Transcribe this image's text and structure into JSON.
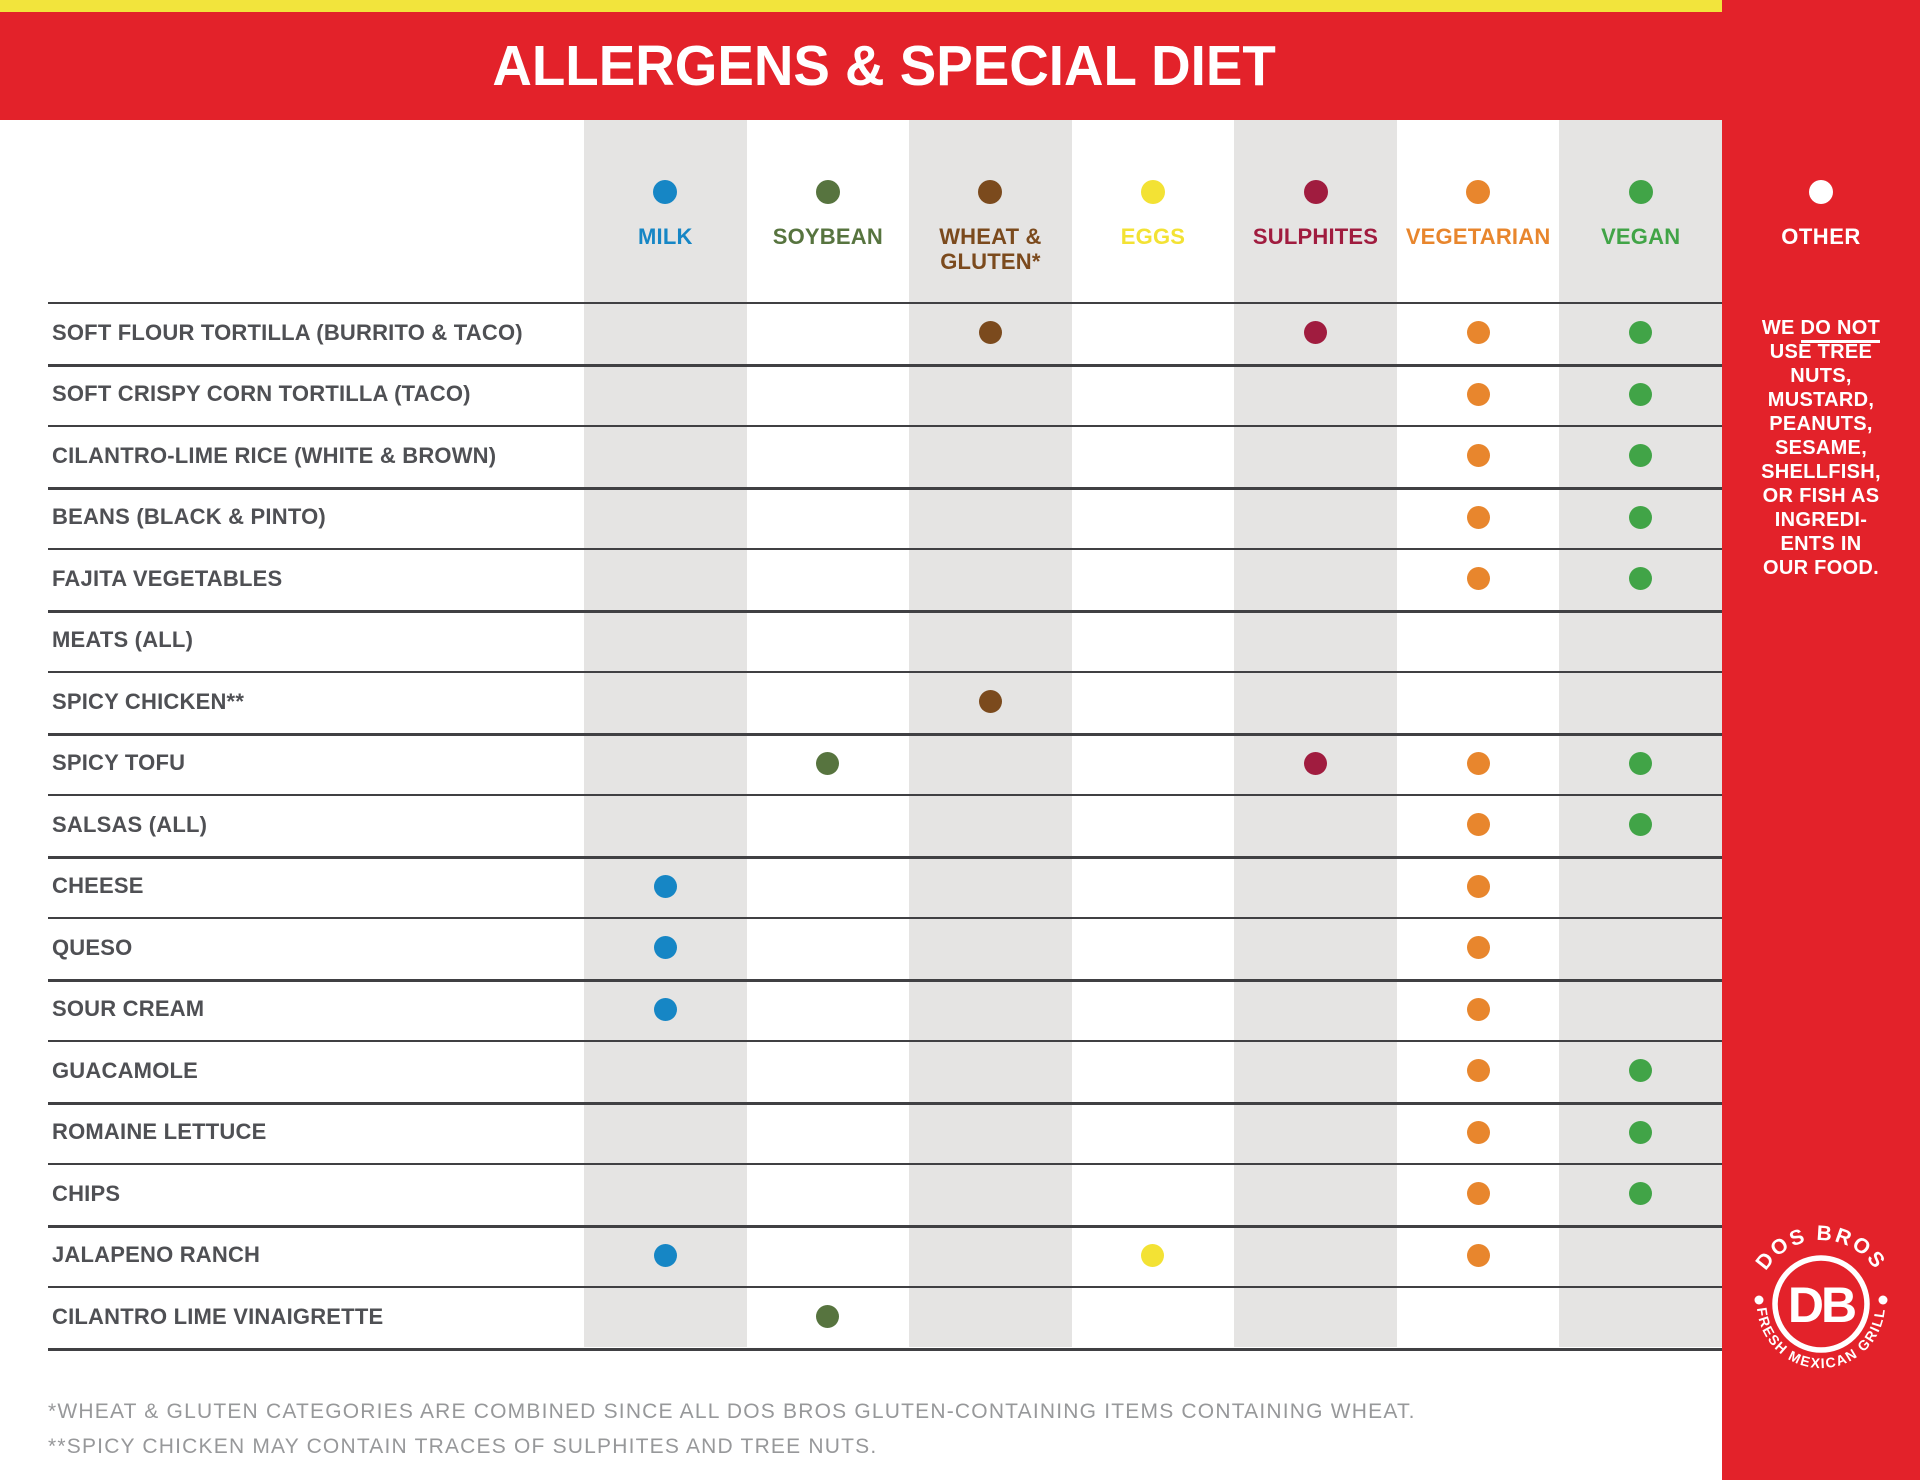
{
  "banner": {
    "title": "ALLERGENS & SPECIAL DIET"
  },
  "colors": {
    "brand_red": "#e3222a",
    "accent_yellow": "#f2e43c",
    "stripe_gray": "#e5e4e3",
    "grid_line": "#404043",
    "row_label": "#4f5054",
    "footnote": "#97989a"
  },
  "columns": [
    {
      "key": "milk",
      "label": "MILK",
      "color": "#1686c5",
      "shaded": true
    },
    {
      "key": "soybean",
      "label": "SOYBEAN",
      "color": "#57743f",
      "shaded": false
    },
    {
      "key": "wheat",
      "label": "WHEAT & GLUTEN*",
      "color": "#7b4a1d",
      "shaded": true
    },
    {
      "key": "eggs",
      "label": "EGGS",
      "color": "#f3e234",
      "shaded": false
    },
    {
      "key": "sulphites",
      "label": "SULPHITES",
      "color": "#a01c3f",
      "shaded": true
    },
    {
      "key": "vegetarian",
      "label": "VEGETARIAN",
      "color": "#e8862d",
      "shaded": false
    },
    {
      "key": "vegan",
      "label": "VEGAN",
      "color": "#41a447",
      "shaded": true
    }
  ],
  "rows": [
    {
      "label": "SOFT FLOUR TORTILLA (BURRITO & TACO)",
      "marks": [
        "wheat",
        "sulphites",
        "vegetarian",
        "vegan"
      ]
    },
    {
      "label": "SOFT CRISPY CORN TORTILLA (TACO)",
      "marks": [
        "vegetarian",
        "vegan"
      ]
    },
    {
      "label": "CILANTRO-LIME RICE (WHITE & BROWN)",
      "marks": [
        "vegetarian",
        "vegan"
      ]
    },
    {
      "label": "BEANS (BLACK & PINTO)",
      "marks": [
        "vegetarian",
        "vegan"
      ]
    },
    {
      "label": "FAJITA VEGETABLES",
      "marks": [
        "vegetarian",
        "vegan"
      ]
    },
    {
      "label": "MEATS (ALL)",
      "marks": []
    },
    {
      "label": "SPICY CHICKEN**",
      "marks": [
        "wheat"
      ]
    },
    {
      "label": "SPICY TOFU",
      "marks": [
        "soybean",
        "sulphites",
        "vegetarian",
        "vegan"
      ]
    },
    {
      "label": "SALSAS (ALL)",
      "marks": [
        "vegetarian",
        "vegan"
      ]
    },
    {
      "label": "CHEESE",
      "marks": [
        "milk",
        "vegetarian"
      ]
    },
    {
      "label": "QUESO",
      "marks": [
        "milk",
        "vegetarian"
      ]
    },
    {
      "label": "SOUR CREAM",
      "marks": [
        "milk",
        "vegetarian"
      ]
    },
    {
      "label": "GUACAMOLE",
      "marks": [
        "vegetarian",
        "vegan"
      ]
    },
    {
      "label": "ROMAINE LETTUCE",
      "marks": [
        "vegetarian",
        "vegan"
      ]
    },
    {
      "label": "CHIPS",
      "marks": [
        "vegetarian",
        "vegan"
      ]
    },
    {
      "label": "JALAPENO RANCH",
      "marks": [
        "milk",
        "eggs",
        "vegetarian"
      ]
    },
    {
      "label": "CILANTRO LIME VINAIGRETTE",
      "marks": [
        "soybean"
      ]
    }
  ],
  "sidebar": {
    "header": {
      "label": "OTHER",
      "dot_color": "#ffffff"
    },
    "note": {
      "line1_normal": "WE",
      "line1_underlined": "DO NOT",
      "lines": [
        "USE TREE",
        "NUTS,",
        "MUSTARD,",
        "PEANUTS,",
        "SESAME,",
        "SHELLFISH,",
        "OR FISH AS",
        "INGREDI-",
        "ENTS IN",
        "OUR FOOD."
      ]
    },
    "logo": {
      "arc_top": "DOS BROS",
      "monogram": "DB",
      "arc_bottom": "FRESH MEXICAN GRILL"
    }
  },
  "footnotes": [
    "*WHEAT & GLUTEN CATEGORIES ARE COMBINED SINCE ALL DOS BROS GLUTEN-CONTAINING ITEMS CONTAINING WHEAT.",
    "**SPICY CHICKEN MAY CONTAIN TRACES OF SULPHITES AND TREE NUTS."
  ]
}
